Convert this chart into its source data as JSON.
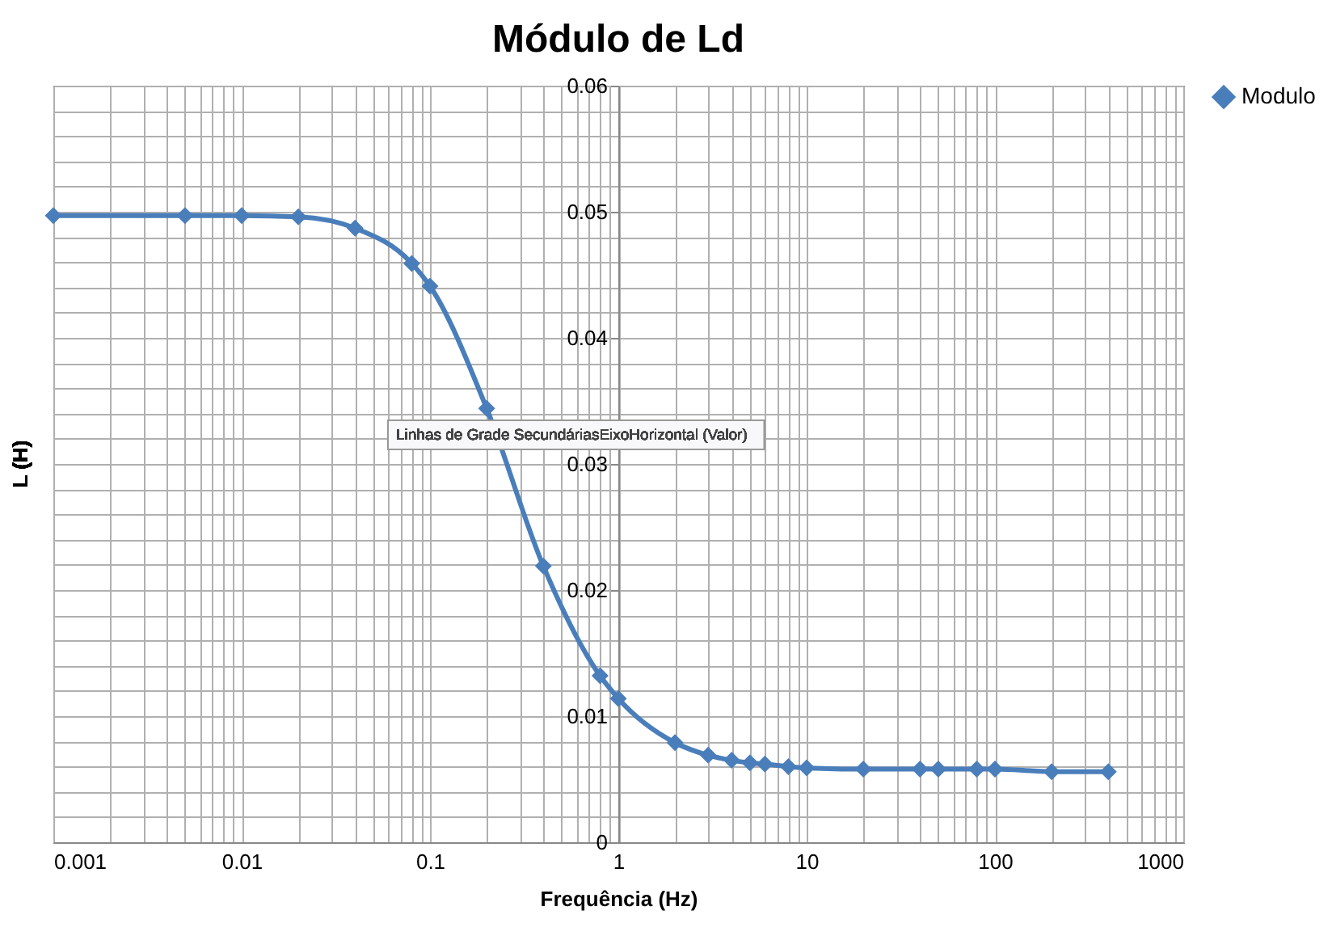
{
  "chart_data": {
    "type": "line",
    "title": "Módulo de Ld",
    "xlabel": "Frequência (Hz)",
    "ylabel": "L (H)",
    "annotations": [
      "Linhas de Grade SecundáriasEixoHorizontal (Valor)"
    ],
    "x": [
      0.001,
      0.005,
      0.01,
      0.02,
      0.04,
      0.08,
      0.1,
      0.2,
      0.4,
      0.8,
      1,
      2,
      3,
      4,
      5,
      6,
      8,
      10,
      20,
      40,
      50,
      80,
      100,
      200,
      400
    ],
    "series": [
      {
        "name": "Modulo",
        "color": "#4a7ebb",
        "values": [
          0.0497,
          0.0497,
          0.0497,
          0.0496,
          0.0487,
          0.0459,
          0.0441,
          0.0344,
          0.0219,
          0.0132,
          0.0114,
          0.0079,
          0.0069,
          0.0065,
          0.0063,
          0.0062,
          0.006,
          0.0059,
          0.0058,
          0.0058,
          0.0058,
          0.0058,
          0.0058,
          0.0056,
          0.0056
        ]
      }
    ],
    "log": "x",
    "xlim": [
      0.001,
      1000
    ],
    "xticks": [
      0.001,
      0.01,
      0.1,
      1,
      10,
      100,
      1000
    ],
    "ylim": [
      0,
      0.06
    ],
    "yticks": [
      0,
      0.01,
      0.02,
      0.03,
      0.04,
      0.05,
      0.06
    ],
    "grid": true,
    "legend": "right",
    "marker": "diamond",
    "line_style": "solid"
  }
}
